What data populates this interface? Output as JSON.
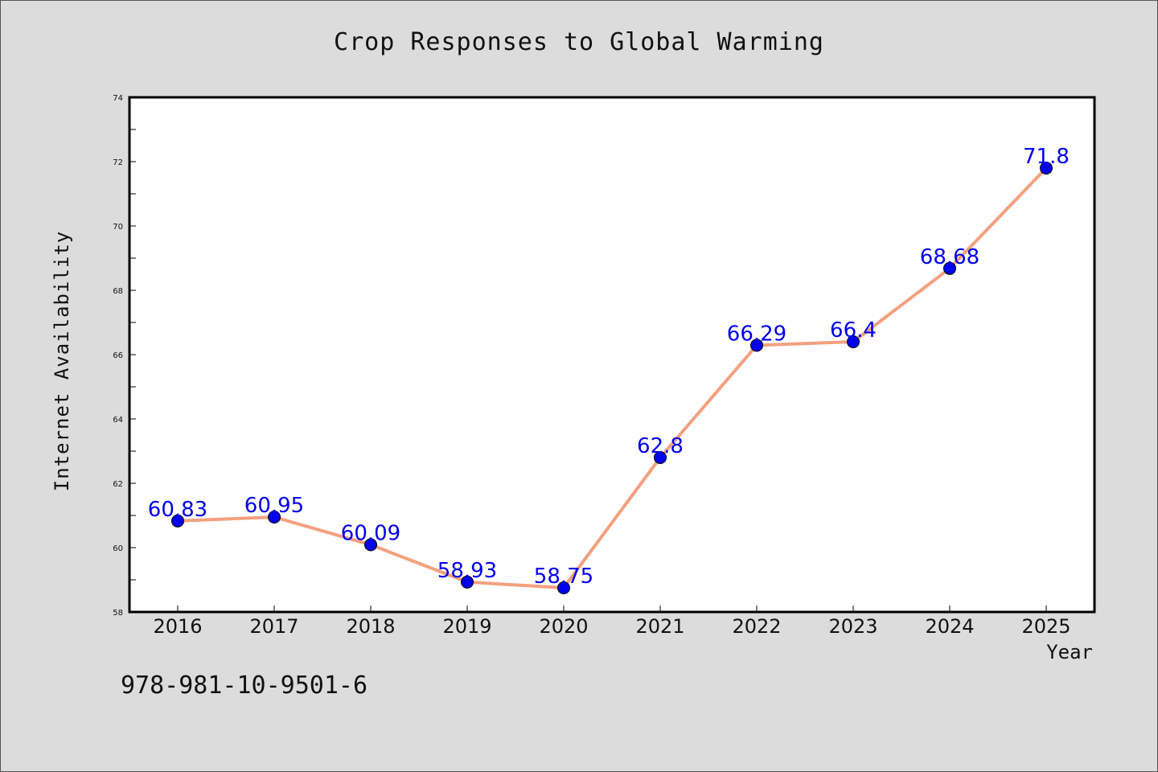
{
  "chart_data": {
    "type": "line",
    "title": "Crop Responses to Global Warming",
    "xlabel": "Year",
    "ylabel": "Internet Availability",
    "categories": [
      "2016",
      "2017",
      "2018",
      "2019",
      "2020",
      "2021",
      "2022",
      "2023",
      "2024",
      "2025"
    ],
    "series": [
      {
        "values": [
          60.83,
          60.95,
          60.09,
          58.93,
          58.75,
          62.8,
          66.29,
          66.4,
          68.68,
          71.8
        ],
        "data_labels": [
          "60.83",
          "60.95",
          "60.09",
          "58.93",
          "58.75",
          "62.8",
          "66.29",
          "66.4",
          "68.68",
          "71.8"
        ],
        "line_color": "#f4a07e",
        "marker_color": "#0000ee"
      }
    ],
    "ylim": [
      58,
      74
    ],
    "yticks": [
      "58",
      "60",
      "62",
      "64",
      "66",
      "68",
      "70",
      "72",
      "74"
    ],
    "grid": false,
    "legend": "none"
  },
  "footer": {
    "isbn": "978-981-10-9501-6"
  }
}
